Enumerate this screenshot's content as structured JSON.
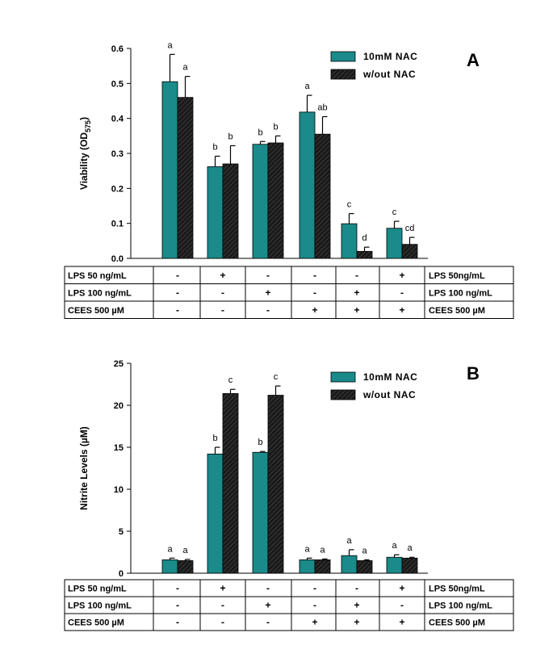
{
  "colors": {
    "nac": "#1a8a8a",
    "without": "#1a1a1a",
    "axis": "#000000"
  },
  "table_rows": [
    {
      "left": "LPS  50 ng/mL",
      "right": "LPS  50ng/mL",
      "cells": [
        "-",
        "+",
        "-",
        "-",
        "-",
        "+"
      ]
    },
    {
      "left": "LPS 100 ng/mL",
      "right": "LPS 100 ng/mL",
      "cells": [
        "-",
        "-",
        "+",
        "-",
        "+",
        "-"
      ]
    },
    {
      "left": "CEES  500 µM",
      "right": "CEES  500 µM",
      "cells": [
        "-",
        "-",
        "-",
        "+",
        "+",
        "+"
      ]
    }
  ],
  "chart_data": [
    {
      "type": "bar",
      "panel": "A",
      "ylabel": "Viability (OD",
      "ylabel_sub": "575",
      "ylabel_close": ")",
      "ylim": [
        0,
        0.6
      ],
      "yticks": [
        0.0,
        0.1,
        0.2,
        0.3,
        0.4,
        0.5,
        0.6
      ],
      "ytick_labels": [
        "0.0",
        "0.1",
        "0.2",
        "0.3",
        "0.4",
        "0.5",
        "0.6"
      ],
      "legend": [
        "10mM NAC",
        "w/out NAC"
      ],
      "legend_placement": "top-right",
      "groups": 6,
      "series": [
        {
          "name": "10mM NAC",
          "values": [
            0.505,
            0.262,
            0.326,
            0.418,
            0.099,
            0.086
          ],
          "errors": [
            0.078,
            0.03,
            0.008,
            0.048,
            0.029,
            0.02
          ],
          "letters": [
            "a",
            "b",
            "b",
            "a",
            "c",
            "c"
          ]
        },
        {
          "name": "w/out NAC",
          "values": [
            0.46,
            0.27,
            0.33,
            0.355,
            0.02,
            0.04
          ],
          "errors": [
            0.06,
            0.052,
            0.02,
            0.05,
            0.012,
            0.02
          ],
          "letters": [
            "a",
            "b",
            "b",
            "ab",
            "d",
            "cd"
          ]
        }
      ]
    },
    {
      "type": "bar",
      "panel": "B",
      "ylabel": "Nitrite Levels (µM)",
      "ylim": [
        0,
        25
      ],
      "yticks": [
        0,
        5,
        10,
        15,
        20,
        25
      ],
      "ytick_labels": [
        "0",
        "5",
        "10",
        "15",
        "20",
        "25"
      ],
      "legend": [
        "10mM NAC",
        "w/out NAC"
      ],
      "legend_placement": "top-right",
      "groups": 6,
      "series": [
        {
          "name": "10mM NAC",
          "values": [
            1.6,
            14.2,
            14.4,
            1.6,
            2.1,
            1.9
          ],
          "errors": [
            0.2,
            0.8,
            0.1,
            0.2,
            0.7,
            0.3
          ],
          "letters": [
            "a",
            "b",
            "b",
            "a",
            "a",
            "a"
          ]
        },
        {
          "name": "w/out NAC",
          "values": [
            1.5,
            21.4,
            21.2,
            1.6,
            1.5,
            1.8
          ],
          "errors": [
            0.15,
            0.5,
            1.1,
            0.1,
            0.1,
            0.1
          ],
          "letters": [
            "a",
            "c",
            "c",
            "a",
            "a",
            "a"
          ]
        }
      ]
    }
  ]
}
